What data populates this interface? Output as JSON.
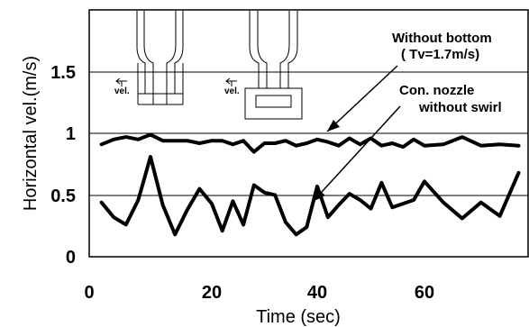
{
  "chart_data": {
    "type": "line",
    "title": "",
    "xlabel": "Time (sec)",
    "ylabel": "Horizontal vel.(m/s)",
    "xlim": [
      0,
      71
    ],
    "ylim": [
      0,
      2
    ],
    "grid": "horizontal",
    "x_ticks": [
      "0",
      "20",
      "40",
      "60"
    ],
    "y_ticks": [
      "0",
      "0.5",
      "1",
      "1.5"
    ],
    "series": [
      {
        "name": "Without bottom",
        "x": [
          2,
          4,
          6,
          8,
          10,
          12,
          14,
          16,
          18,
          20,
          22,
          24,
          26,
          28,
          30,
          32,
          34,
          36,
          38,
          40,
          42,
          44,
          46,
          48,
          50,
          52,
          54,
          56,
          58,
          60,
          62,
          64,
          66,
          68,
          70
        ],
        "y": [
          0.91,
          0.95,
          0.97,
          0.95,
          0.99,
          0.94,
          0.94,
          0.94,
          0.92,
          0.94,
          0.94,
          0.91,
          0.94,
          0.85,
          0.92,
          0.92,
          0.94,
          0.9,
          0.92,
          0.95,
          0.93,
          0.9,
          0.96,
          0.91,
          0.96,
          0.9,
          0.92,
          0.89,
          0.95,
          0.9,
          0.91,
          0.97,
          0.9,
          0.91,
          0.9
        ]
      },
      {
        "name": "Con. nozzle without swirl",
        "x": [
          2,
          4,
          6,
          8,
          10,
          12,
          14,
          16,
          18,
          20,
          22,
          24,
          26,
          28,
          30,
          32,
          34,
          36,
          38,
          40,
          42,
          44,
          46,
          48,
          50,
          52,
          54,
          56,
          58,
          60,
          62,
          64,
          66,
          68,
          70
        ],
        "y": [
          0.44,
          0.32,
          0.26,
          0.46,
          0.81,
          0.42,
          0.18,
          0.38,
          0.55,
          0.43,
          0.21,
          0.45,
          0.26,
          0.58,
          0.52,
          0.5,
          0.28,
          0.18,
          0.24,
          0.57,
          0.32,
          0.42,
          0.51,
          0.46,
          0.39,
          0.6,
          0.4,
          0.43,
          0.46,
          0.61,
          0.44,
          0.31,
          0.44,
          0.33,
          0.68
        ]
      }
    ],
    "annotations": {
      "without_bottom": "Without bottom",
      "velocity": "( Tv=1.7m/s)",
      "con_nozzle": "Con. nozzle",
      "without_swirl": "without swirl",
      "inset_vel_1": "vel.",
      "inset_vel_2": "vel."
    }
  }
}
